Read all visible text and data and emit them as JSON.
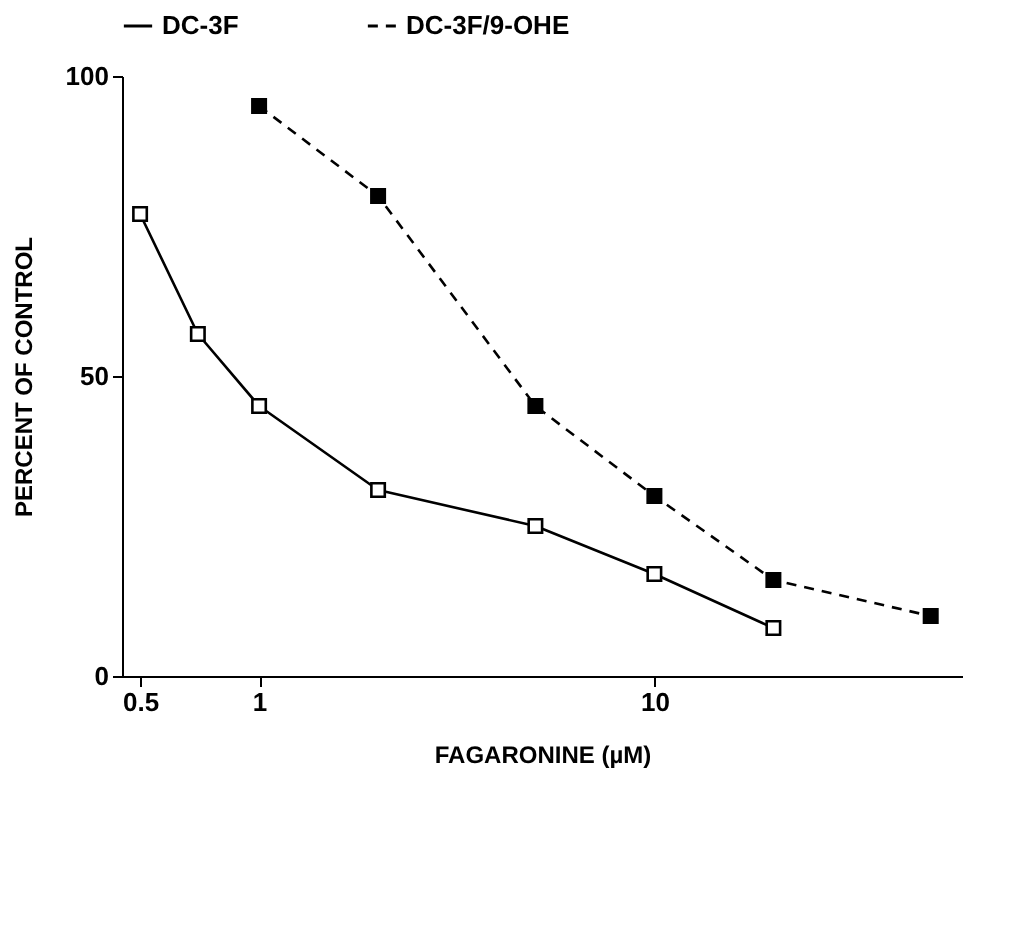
{
  "chart_data": {
    "type": "line",
    "xlabel": "FAGARONINE (µM)",
    "ylabel": "PERCENT OF CONTROL",
    "log": "x",
    "xlim": [
      0.45,
      60
    ],
    "xticks": [
      0.5,
      1,
      10
    ],
    "ylim": [
      0,
      100
    ],
    "yticks": [
      0,
      50,
      100
    ],
    "grid": false,
    "legend": "top",
    "marker": "square",
    "series": [
      {
        "name": "DC-3F",
        "color": "#000000",
        "line_style": "solid",
        "x": [
          0.5,
          0.7,
          1,
          2,
          5,
          10,
          20
        ],
        "values": [
          77,
          57,
          45,
          31,
          25,
          17,
          8
        ]
      },
      {
        "name": "DC-3F/9-OHE",
        "color": "#000000",
        "line_style": "dashed",
        "x": [
          1,
          2,
          5,
          10,
          20,
          50
        ],
        "values": [
          95,
          80,
          45,
          30,
          16,
          10
        ]
      }
    ]
  }
}
